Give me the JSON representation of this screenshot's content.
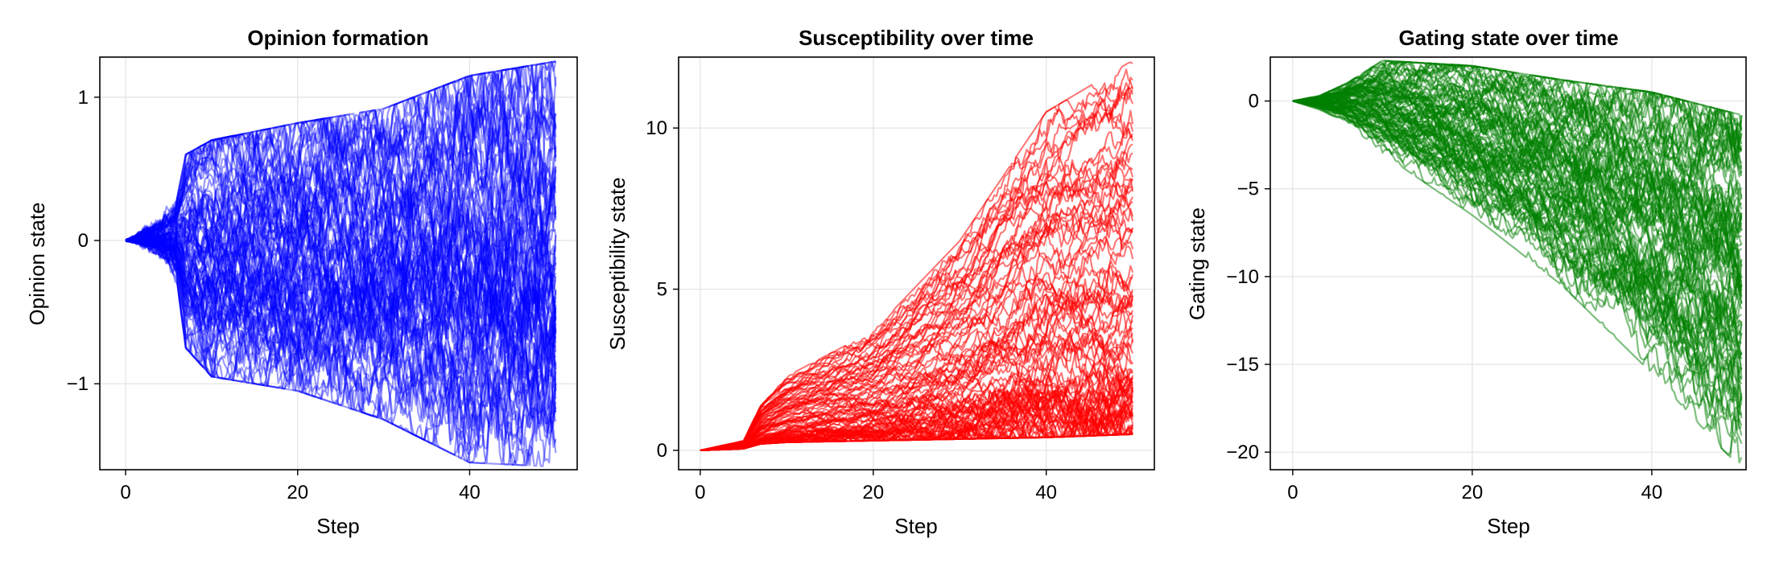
{
  "chart_data": [
    {
      "type": "line",
      "title": "Opinion formation",
      "xlabel": "Step",
      "ylabel": "Opinion state",
      "xlim": [
        -3,
        52.5
      ],
      "ylim": [
        -1.6,
        1.28
      ],
      "xticks": [
        0,
        20,
        40
      ],
      "yticks": [
        -1,
        0,
        1
      ],
      "yticklabels": [
        "−1",
        "0",
        "1"
      ],
      "grid": true,
      "series_color": "#0000ff",
      "series_count": 100,
      "steps": 50,
      "envelope": {
        "x": [
          0,
          2,
          4,
          6,
          7,
          10,
          20,
          30,
          40,
          50
        ],
        "upper": [
          0.02,
          0.15,
          0.2,
          0.3,
          0.6,
          0.7,
          0.82,
          0.92,
          1.15,
          1.25
        ],
        "lower": [
          -0.02,
          -0.12,
          -0.18,
          -0.3,
          -0.75,
          -0.95,
          -1.05,
          -1.25,
          -1.55,
          -1.58
        ]
      },
      "representative_finals": [
        1.25,
        1.1,
        0.85,
        0.45,
        0.3,
        0.05,
        -0.2,
        -0.35,
        -0.5,
        -0.7,
        -0.9,
        -1.1,
        -1.5
      ]
    },
    {
      "type": "line",
      "title": "Susceptibility over time",
      "xlabel": "Step",
      "ylabel": "Susceptibility state",
      "xlim": [
        -2.5,
        52.5
      ],
      "ylim": [
        -0.6,
        12.2
      ],
      "xticks": [
        0,
        20,
        40
      ],
      "yticks": [
        0,
        5,
        10
      ],
      "yticklabels": [
        "0",
        "5",
        "10"
      ],
      "grid": true,
      "series_color": "#ff0000",
      "series_count": 100,
      "steps": 50,
      "envelope": {
        "x": [
          0,
          5,
          7,
          10,
          20,
          30,
          40,
          50
        ],
        "upper": [
          0,
          0.3,
          1.5,
          2.3,
          3.7,
          6.5,
          10.5,
          12.1
        ],
        "lower": [
          0,
          0.05,
          0.2,
          0.25,
          0.3,
          0.35,
          0.4,
          0.5
        ]
      },
      "representative_finals": [
        12.1,
        10.8,
        9.4,
        8.5,
        8.1,
        5.7,
        5.3,
        4.2,
        3.6,
        2.8,
        2.2,
        1.6,
        1.2,
        0.9,
        0.6
      ]
    },
    {
      "type": "line",
      "title": "Gating state over time",
      "xlabel": "Step",
      "ylabel": "Gating state",
      "xlim": [
        -2.5,
        50.5
      ],
      "ylim": [
        -21,
        2.5
      ],
      "xticks": [
        0,
        20,
        40
      ],
      "yticks": [
        -20,
        -15,
        -10,
        -5,
        0
      ],
      "yticklabels": [
        "−20",
        "−15",
        "−10",
        "−5",
        "0"
      ],
      "grid": true,
      "series_color": "#008000",
      "series_count": 100,
      "steps": 50,
      "envelope": {
        "x": [
          0,
          3,
          6,
          10,
          20,
          30,
          40,
          50
        ],
        "upper": [
          0,
          0.3,
          1.0,
          2.3,
          2.0,
          1.2,
          0.5,
          -0.8
        ],
        "lower": [
          0,
          -0.5,
          -1.2,
          -3.0,
          -6.5,
          -10.5,
          -15.5,
          -21.0
        ]
      },
      "representative_finals": [
        -1.0,
        -2.5,
        -4.0,
        -6.0,
        -8.0,
        -10.0,
        -11.5,
        -13.0,
        -14.5,
        -16.5,
        -18.5,
        -20.5
      ]
    }
  ]
}
